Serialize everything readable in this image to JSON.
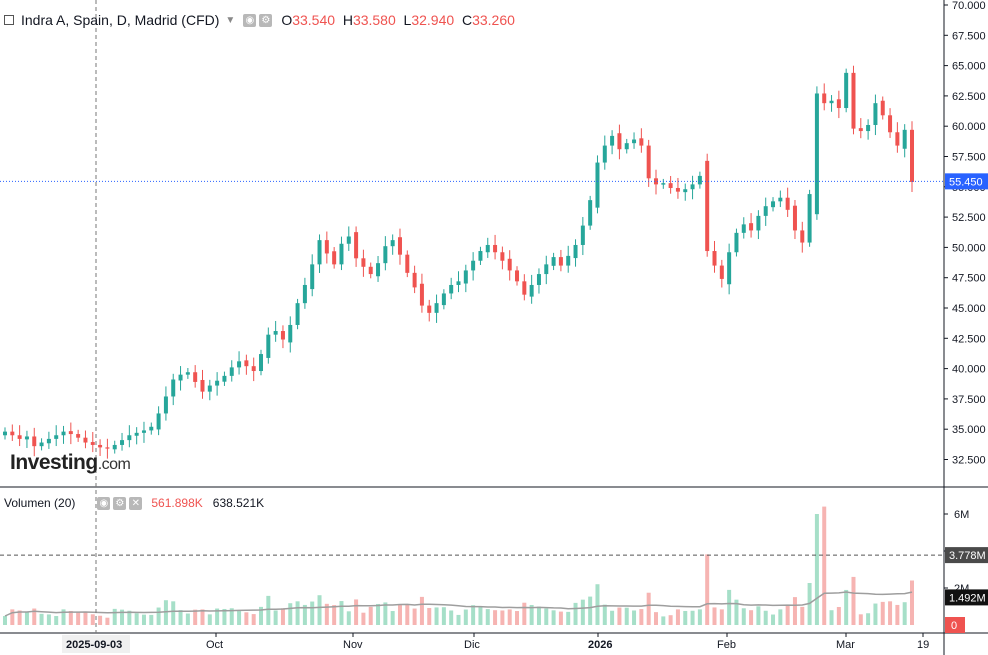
{
  "legend": {
    "title": "Indra A, Spain, D, Madrid (CFD)",
    "open_label": "O",
    "open": "33.540",
    "high_label": "H",
    "high": "33.580",
    "low_label": "L",
    "low": "32.940",
    "close_label": "C",
    "close": "33.260"
  },
  "volume_legend": {
    "title": "Volumen (20)",
    "ma_value": "561.898K",
    "value": "638.521K"
  },
  "logo": {
    "name": "Investing",
    "domain": ".com"
  },
  "crosshair_date": "2025-09-03",
  "price_badge": "55.450",
  "volume_badges": {
    "ref": "3.778M",
    "ma": "1.492M",
    "zero": "0"
  },
  "colors": {
    "up": "#26a69a",
    "down": "#ef5350",
    "up_vol": "#a6dfc8",
    "down_vol": "#f6b4b2",
    "ma": "#9e9e9e"
  },
  "chart_data": {
    "type": "candlestick",
    "price_axis": {
      "min": 30.0,
      "max": 70.0,
      "ticks": [
        "70.000",
        "67.500",
        "65.000",
        "62.500",
        "60.000",
        "57.500",
        "55.000",
        "52.500",
        "50.000",
        "47.500",
        "45.000",
        "42.500",
        "40.000",
        "37.500",
        "35.000",
        "32.500"
      ]
    },
    "volume_axis": {
      "ticks": [
        "6M",
        "4M",
        "2M"
      ]
    },
    "time_labels": [
      "Oct",
      "Nov",
      "Dic",
      "2026",
      "Feb",
      "Mar",
      "19"
    ],
    "last_price": 55.45,
    "close": [
      34.8,
      34.5,
      34.2,
      34.4,
      33.6,
      33.9,
      34.2,
      34.5,
      34.8,
      34.6,
      34.3,
      33.9,
      33.7,
      33.5,
      33.4,
      33.7,
      34.1,
      34.5,
      34.7,
      34.9,
      35.2,
      36.3,
      37.7,
      39.1,
      39.5,
      39.7,
      38.9,
      38.1,
      38.6,
      39.0,
      39.4,
      40.1,
      40.6,
      40.2,
      39.8,
      41.2,
      42.8,
      43.1,
      42.4,
      43.6,
      45.4,
      46.9,
      48.6,
      50.6,
      49.5,
      48.6,
      50.3,
      50.9,
      49.1,
      48.4,
      47.8,
      48.7,
      50.1,
      50.6,
      49.4,
      47.9,
      46.7,
      45.2,
      44.6,
      45.4,
      46.2,
      46.9,
      47.2,
      48.1,
      48.9,
      49.7,
      50.2,
      49.6,
      48.9,
      48.1,
      47.2,
      46.1,
      46.9,
      47.8,
      48.6,
      49.2,
      48.5,
      49.3,
      50.2,
      51.8,
      53.9,
      57.0,
      58.4,
      59.2,
      58.1,
      58.6,
      58.9,
      58.4,
      55.7,
      55.2,
      55.3,
      54.9,
      54.6,
      54.8,
      55.2,
      55.9,
      49.7,
      48.5,
      47.4,
      49.6,
      51.2,
      51.9,
      51.4,
      52.6,
      53.4,
      53.8,
      54.1,
      53.1,
      51.4,
      50.4,
      54.4,
      62.7,
      61.9,
      62.1,
      61.5,
      64.4,
      59.8,
      59.6,
      60.1,
      61.9,
      60.9,
      59.5,
      58.4,
      59.7,
      55.4
    ]
  }
}
